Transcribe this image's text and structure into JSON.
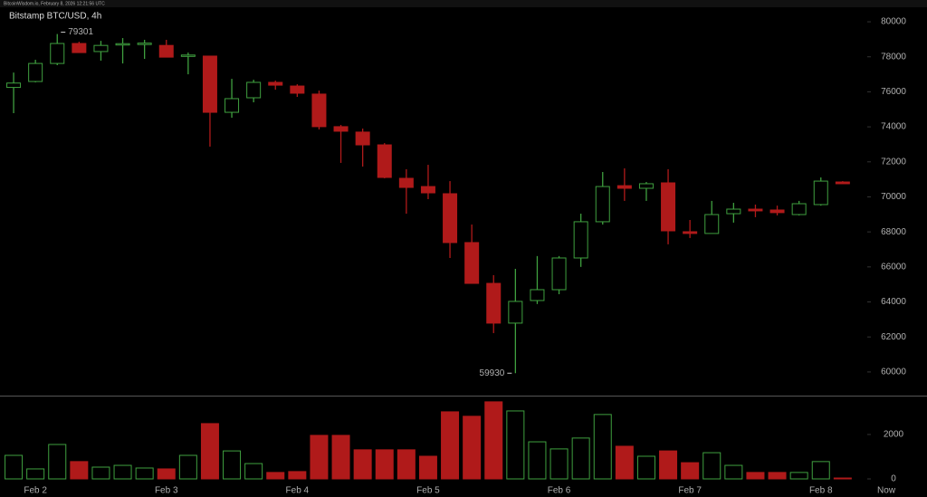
{
  "header": "BitcoinWisdom.io, February 8, 2026 12:21:56 UTC",
  "chart_data": [
    {
      "type": "candlestick",
      "title": "Bitstamp BTC/USD, 4h",
      "categories": [
        null,
        "Feb 2",
        null,
        null,
        null,
        null,
        null,
        "Feb 3",
        null,
        null,
        null,
        null,
        null,
        "Feb 4",
        null,
        null,
        null,
        null,
        null,
        "Feb 5",
        null,
        null,
        null,
        null,
        null,
        "Feb 6",
        null,
        null,
        null,
        null,
        null,
        "Feb 7",
        null,
        null,
        null,
        null,
        null,
        "Feb 8",
        null,
        null,
        "Now"
      ],
      "open": [
        76250,
        76590,
        77620,
        78760,
        78300,
        78700,
        78700,
        78650,
        78050,
        78040,
        74830,
        75660,
        76540,
        76330,
        75870,
        74010,
        73700,
        72970,
        71060,
        70590,
        70180,
        67390,
        65060,
        62790,
        64080,
        64700,
        66510,
        68580,
        70640,
        70490,
        70800,
        68010,
        67910,
        69040,
        69300,
        69250,
        68990,
        69560,
        70850,
        null,
        null
      ],
      "high": [
        77100,
        77830,
        79301,
        78860,
        78910,
        79070,
        78970,
        78970,
        78240,
        78040,
        76740,
        76690,
        76640,
        76430,
        76070,
        74110,
        73900,
        73070,
        71580,
        71830,
        70900,
        68420,
        65530,
        65890,
        66620,
        66620,
        69040,
        71420,
        71630,
        70850,
        71580,
        68680,
        69770,
        69660,
        69560,
        69500,
        69770,
        71110,
        70900,
        null,
        null
      ],
      "low": [
        74780,
        76540,
        77520,
        78240,
        77780,
        77620,
        77880,
        77980,
        77000,
        72870,
        74520,
        75400,
        76120,
        75710,
        73850,
        71940,
        71730,
        71060,
        69040,
        69870,
        66510,
        65060,
        62220,
        59930,
        63880,
        64440,
        66000,
        68420,
        69770,
        69770,
        67290,
        67650,
        67910,
        68530,
        68840,
        68940,
        68940,
        69500,
        70750,
        null,
        null
      ],
      "close": [
        76500,
        77620,
        78760,
        78240,
        78650,
        78750,
        78780,
        77980,
        78100,
        74830,
        75610,
        76540,
        76380,
        75920,
        74010,
        73750,
        72970,
        71110,
        70540,
        70230,
        67390,
        65060,
        62790,
        64030,
        64700,
        66510,
        68580,
        70590,
        70490,
        70750,
        68060,
        67910,
        68990,
        69300,
        69200,
        69100,
        69610,
        70900,
        70750,
        null,
        null
      ],
      "up_color": "#3f9f3f",
      "down_color": "#b01a1a",
      "ylim": [
        58650,
        80830
      ],
      "yticks": [
        60000,
        62000,
        64000,
        66000,
        68000,
        70000,
        72000,
        74000,
        76000,
        78000,
        80000
      ]
    },
    {
      "type": "bar",
      "values": [
        1060,
        450,
        1550,
        780,
        530,
        610,
        490,
        450,
        1060,
        2490,
        1260,
        690,
        290,
        330,
        1960,
        1960,
        1310,
        1310,
        1310,
        1020,
        3020,
        2820,
        3470,
        3060,
        1670,
        1350,
        1840,
        2900,
        1470,
        1020,
        1260,
        730,
        1180,
        610,
        290,
        290,
        290,
        780,
        40,
        null,
        null
      ],
      "ylim": [
        0,
        3710
      ],
      "yticks": [
        0,
        2000
      ]
    }
  ]
}
